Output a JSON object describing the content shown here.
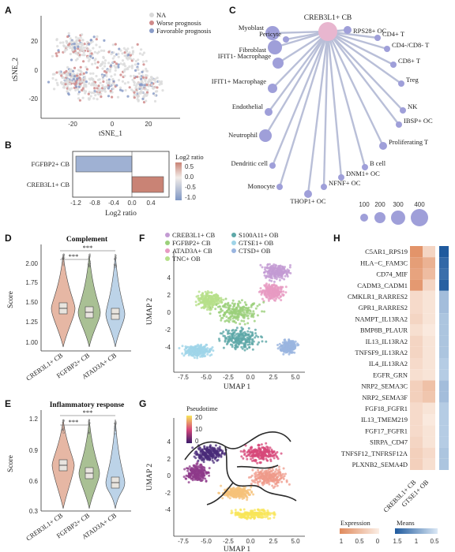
{
  "panels": {
    "a": "A",
    "b": "B",
    "c": "C",
    "d": "D",
    "e": "E",
    "f": "F",
    "g": "G",
    "h": "H"
  },
  "panel_a": {
    "legend": [
      {
        "label": "NA",
        "color": "#d9d9d9"
      },
      {
        "label": "Worse prognosis",
        "color": "#d08a8a"
      },
      {
        "label": "Favorable prognosis",
        "color": "#8a9cc8"
      }
    ],
    "xlabel": "tSNE_1",
    "ylabel": "tSNE_2",
    "xticks": [
      "-20",
      "0",
      "20"
    ],
    "yticks": [
      "20",
      "0",
      "-20"
    ]
  },
  "panel_b": {
    "chart_data": {
      "type": "bar",
      "categories": [
        "FGFBP2+ CB",
        "CREB3L1+ CB"
      ],
      "values": [
        -1.2,
        0.45
      ],
      "xlabel": "Log2 ratio",
      "xlim": [
        -1.3,
        0.6
      ]
    },
    "xticks": [
      "-1.2",
      "-0.8",
      "-0.4",
      "0.0",
      "0.4"
    ],
    "colorbar": {
      "title": "Log2 ratio",
      "ticks": [
        "0.5",
        "0.0",
        "-0.5",
        "-1.0"
      ]
    }
  },
  "panel_c": {
    "center": "CREB3L1+ CB",
    "nodes": [
      "Myoblast",
      "RPS28+ OC",
      "CD4+ T",
      "CD4-/CD8- T",
      "CD8+ T",
      "Treg",
      "NK",
      "IBSP+ OC",
      "Proliferating T",
      "B cell",
      "DNM1+ OC",
      "NFNF+ OC",
      "THOP1+ OC",
      "Monocyte",
      "Dendritic cell",
      "Neutrophil",
      "Endothelial",
      "IFIT1+ Macrophage",
      "IFIT1- Macrophage",
      "Fibroblast",
      "Pericyte"
    ],
    "size_legend": [
      "100",
      "200",
      "300",
      "400"
    ]
  },
  "panel_d": {
    "title": "Complement",
    "ylabel": "Score",
    "categories": [
      "CREB3L1+ CB",
      "FGFBP2+ CB",
      "ATAD3A+ CB"
    ],
    "yticks": [
      "2.00",
      "1.75",
      "1.50",
      "1.25",
      "1.00"
    ],
    "sig": [
      "***",
      "***"
    ]
  },
  "panel_e": {
    "title": "Inflammatory response",
    "ylabel": "Score",
    "categories": [
      "CREB3L1+ CB",
      "FGFBP2+ CB",
      "ATAD3A+ CB"
    ],
    "yticks": [
      "1.2",
      "0.9",
      "0.6",
      "0.3"
    ],
    "sig": [
      "***",
      "***"
    ]
  },
  "panel_f": {
    "legend": [
      {
        "label": "CREB3L1+ CB",
        "color": "#c39bd3"
      },
      {
        "label": "FGFBP2+ CB",
        "color": "#9bd07a"
      },
      {
        "label": "ATAD3A+ CB",
        "color": "#e79ac2"
      },
      {
        "label": "TNC+ OB",
        "color": "#b6e08a"
      },
      {
        "label": "S100A11+ OB",
        "color": "#5ea8a8"
      },
      {
        "label": "GTSE1+ OB",
        "color": "#9fd4e8"
      },
      {
        "label": "CTSD+ OB",
        "color": "#9ab5e0"
      }
    ],
    "xlabel": "UMAP 1",
    "ylabel": "UMAP 2",
    "xticks": [
      "-7.5",
      "-5.0",
      "-2.5",
      "0.0",
      "2.5",
      "5.0"
    ],
    "yticks": [
      "4",
      "2",
      "0",
      "-2",
      "-4"
    ]
  },
  "panel_g": {
    "legend_title": "Pseudotime",
    "legend_ticks": [
      "20",
      "10",
      "0"
    ],
    "xlabel": "UMAP 1",
    "ylabel": "UMAP 2",
    "xticks": [
      "-7.5",
      "-5.0",
      "-2.5",
      "0.0",
      "2.5",
      "5.0"
    ],
    "yticks": [
      "4",
      "2",
      "0",
      "-2",
      "-4"
    ]
  },
  "panel_h": {
    "rows": [
      "C5AR1_RPS19",
      "HLA−C_FAM3C",
      "CD74_MIF",
      "CADM3_CADM1",
      "CMKLR1_RARRES2",
      "GPR1_RARRES2",
      "NAMPT_IL13RA2",
      "BMP8B_PLAUR",
      "IL13_IL13RA2",
      "TNFSF9_IL13RA2",
      "IL4_IL13RA2",
      "EGFR_GRN",
      "NRP2_SEMA3C",
      "NRP2_SEMA3F",
      "FGF18_FGFR1",
      "IL13_TMEM219",
      "FGF17_FGFR1",
      "SIRPA_CD47",
      "TNFSF12_TNFRSF12A",
      "PLXNB2_SEMA4D"
    ],
    "columns": [
      "CREB3L1+ CB",
      "GTSE1+ OB"
    ],
    "expression_legend": {
      "title": "Expression",
      "ticks": [
        "1",
        "0.5",
        "0"
      ]
    },
    "means_legend": {
      "title": "Means",
      "ticks": [
        "1.5",
        "1",
        "0.5"
      ]
    }
  }
}
